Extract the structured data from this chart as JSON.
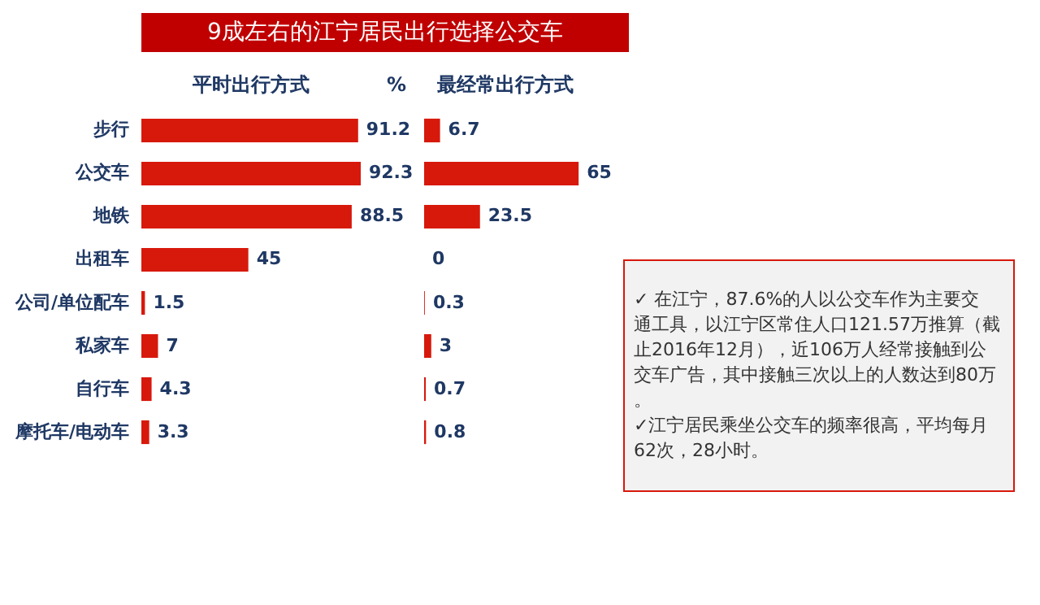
{
  "chart_data": [
    {
      "type": "bar",
      "orientation": "horizontal",
      "title": "9成左右的江宁居民出行选择公交车",
      "subtitle": "平时出行方式",
      "annotations": [
        "%"
      ],
      "categories": [
        "步行",
        "公交车",
        "地铁",
        "出租车",
        "公司/单位配车",
        "私家车",
        "自行车",
        "摩托车/电动车"
      ],
      "series": [
        {
          "color": "#d7190c",
          "values": [
            91.2,
            92.3,
            88.5,
            45,
            1.5,
            7,
            4.3,
            3.3
          ]
        }
      ],
      "data_labels": true
    },
    {
      "type": "bar",
      "orientation": "horizontal",
      "subtitle": "最经常出行方式",
      "tick_labels": false,
      "categories": [
        null,
        null,
        null,
        null,
        null,
        null,
        null,
        null
      ],
      "series": [
        {
          "color": "#d7190c",
          "values": [
            6.7,
            65,
            23.5,
            0,
            0.3,
            3,
            0.7,
            0.8
          ]
        }
      ],
      "data_labels": true
    },
    {
      "type": "other",
      "annotations": [
        "✓ 在江宁，87.6%的人以公交车作为主要交",
        "通工具，以江宁区常住人口121.57万推算（截",
        "止2016年12月），近106万人经常接触到公",
        "交车广告，其中接触三次以上的人数达到80万",
        "。",
        "✓江宁居民乘坐公交车的频率很高，平均每月",
        "62次，28小时。"
      ]
    }
  ]
}
